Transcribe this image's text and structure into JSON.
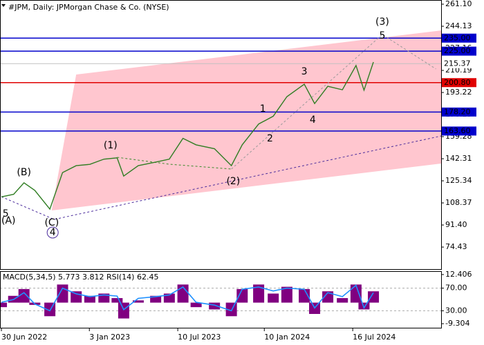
{
  "chart_data": {
    "type": "line",
    "title": "#JPM, Daily:  JPMorgan Chase & Co. (NYSE)",
    "x": [
      "2022-06-30",
      "2022-07-26",
      "2022-08-17",
      "2022-09-09",
      "2022-10-11",
      "2022-11-07",
      "2022-12-06",
      "2023-01-04",
      "2023-02-03",
      "2023-03-03",
      "2023-03-17",
      "2023-04-17",
      "2023-05-24",
      "2023-06-22",
      "2023-07-21",
      "2023-08-18",
      "2023-09-26",
      "2023-11-01",
      "2023-11-24",
      "2023-12-29",
      "2024-01-29",
      "2024-02-27",
      "2024-04-04",
      "2024-04-26",
      "2024-05-24",
      "2024-06-24",
      "2024-07-23",
      "2024-08-09",
      "2024-08-29"
    ],
    "series": [
      {
        "name": "JPM",
        "color": "#2f7d22",
        "values": [
          113,
          115,
          123.8,
          118,
          103.6,
          131.7,
          137,
          138,
          142,
          143,
          129,
          137,
          139.7,
          142,
          158,
          153,
          150,
          137,
          153,
          169,
          175,
          190,
          199.6,
          184.7,
          198,
          195.3,
          214,
          195,
          216.6
        ]
      }
    ],
    "xlim": [
      "2022-06-27",
      "2025-01-20"
    ],
    "xticks": [
      {
        "value": "2022-06-30",
        "label": "30 Jun 2022"
      },
      {
        "value": "2023-01-03",
        "label": "3 Jan 2023"
      },
      {
        "value": "2023-07-10",
        "label": "10 Jul 2023"
      },
      {
        "value": "2024-01-10",
        "label": "10 Jan 2024"
      },
      {
        "value": "2024-07-16",
        "label": "16 Jul 2024"
      }
    ],
    "ylim": [
      57.5,
      264.3
    ],
    "yticks": [
      {
        "value": 261.1,
        "label": "261.10"
      },
      244.13,
      227.16,
      210.19,
      193.22,
      176.25,
      159.28,
      142.31,
      125.34,
      108.37,
      {
        "value": 91.4,
        "label": "91.40"
      },
      74.43
    ],
    "levels": {
      "values": [
        235,
        225,
        215.37,
        200.8,
        178.2,
        163.6
      ],
      "value_labels": [
        "235.00",
        "225.00",
        "215.37",
        "200.80",
        "178.20",
        "163.60"
      ],
      "colors": [
        "#0000cc",
        "#0000cc",
        "#c0c0c0",
        "#e00000",
        "#0000cc",
        "#0000cc"
      ]
    },
    "channel": {
      "color": "#ffc6cf",
      "upper": {
        "x": [
          "2022-10-15",
          "2022-12-06",
          "2025-01-20"
        ],
        "y": [
          102.6,
          207,
          240.9
        ]
      },
      "lower": {
        "x": [
          "2022-10-15",
          "2025-01-20"
        ],
        "y": [
          102.6,
          138.6
        ]
      }
    },
    "wave_lines": [
      {
        "color": "#4b2c9c",
        "x": [
          "2022-06-30",
          "2022-10-20",
          "2025-01-20"
        ],
        "y": [
          113.1,
          95.7,
          159.8
        ]
      },
      {
        "color": "#3a8a2a",
        "x": [
          "2023-03-03",
          "2023-06-22",
          "2023-11-01"
        ],
        "y": [
          143.4,
          138.1,
          134.4
        ]
      },
      {
        "color": "#999999",
        "x": [
          "2023-11-01",
          "2024-09-17",
          "2025-01-09"
        ],
        "y": [
          134.4,
          237.8,
          211.3
        ]
      }
    ],
    "annotations": [
      {
        "text": "(A)",
        "x": "2022-07-15",
        "y": 94.6,
        "color": "#3a9a2a"
      },
      {
        "text": "(B)",
        "x": "2022-08-17",
        "y": 131.7,
        "color": "#3a9a2a"
      },
      {
        "text": "(C)",
        "x": "2022-10-15",
        "y": 93,
        "color": "#3a9a2a"
      },
      {
        "text": "(1)",
        "x": "2023-02-17",
        "y": 152.4,
        "color": "#3a9a2a"
      },
      {
        "text": "(2)",
        "x": "2023-11-05",
        "y": 124.8,
        "color": "#3a9a2a"
      },
      {
        "text": "(3)",
        "x": "2024-09-17",
        "y": 247.3,
        "color": "#3a9a2a"
      },
      {
        "text": "5",
        "x": "2022-07-09",
        "y": 99.9,
        "color": "#9a4a3a"
      },
      {
        "text": "1",
        "x": "2024-01-07",
        "y": 180.5,
        "color": "#9a4a3a"
      },
      {
        "text": "2",
        "x": "2024-01-22",
        "y": 157.7,
        "color": "#9a4a3a"
      },
      {
        "text": "3",
        "x": "2024-04-04",
        "y": 209.1,
        "color": "#9a4a3a"
      },
      {
        "text": "4",
        "x": "2024-04-22",
        "y": 172,
        "color": "#9a4a3a"
      },
      {
        "text": "5",
        "x": "2024-09-17",
        "y": 236.7,
        "color": "#9a4a3a"
      },
      {
        "text": "4",
        "x": "2022-10-17",
        "y": 85.6,
        "color": "#4b2c9c",
        "circled": true
      }
    ],
    "indicator": {
      "title": "MACD(5,34,5) 5.773 3.812 RSI(14) 62.45",
      "macd": {
        "color": "#800080",
        "values": [
          -2,
          3,
          6,
          -1,
          -6,
          8,
          5,
          3,
          4,
          2,
          -7,
          1,
          3,
          4,
          8,
          -2,
          -3,
          -6,
          6,
          8,
          4,
          7,
          6,
          -5,
          5,
          2,
          8,
          -3,
          5
        ]
      },
      "rsi": {
        "color": "#1e90ff",
        "values": [
          45,
          50,
          62,
          42,
          30,
          70,
          60,
          55,
          58,
          56,
          32,
          52,
          55,
          58,
          72,
          45,
          40,
          30,
          68,
          72,
          65,
          70,
          68,
          35,
          62,
          55,
          75,
          35,
          62
        ]
      },
      "macd_ylim": [
        -11.1,
        13.9
      ],
      "macd_yticks": [
        12.406,
        -9.304
      ],
      "rsi_ylim": [
        0,
        100
      ],
      "rsi_yticks": [
        {
          "value": 70,
          "label": "70.00"
        },
        {
          "value": 30,
          "label": "30.00"
        }
      ]
    }
  }
}
